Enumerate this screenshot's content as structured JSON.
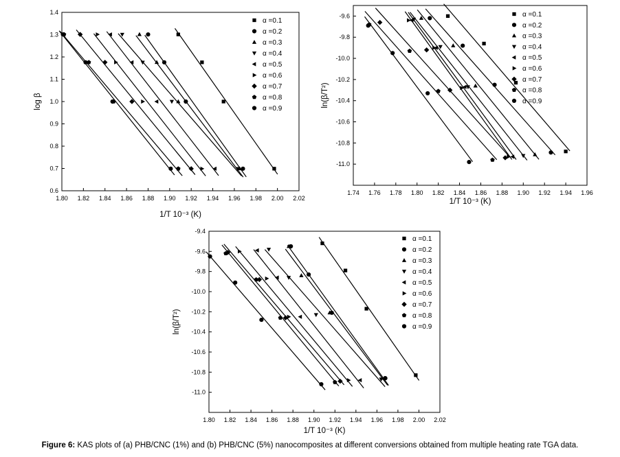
{
  "caption": {
    "label": "Figure 6:",
    "text": " KAS plots of (a) PHB/CNC (1%) and (b) PHB/CNC (5%) nanocomposites at different conversions obtained from multiple heating rate TGA data."
  },
  "chart_data": [
    {
      "type": "scatter",
      "xlabel": "1/T 10⁻³ (K)",
      "ylabel": "log β",
      "xlim": [
        1.8,
        2.02
      ],
      "ylim": [
        0.6,
        1.4
      ],
      "xticks": [
        1.8,
        1.82,
        1.84,
        1.86,
        1.88,
        1.9,
        1.92,
        1.94,
        1.96,
        1.98,
        2.0,
        2.02
      ],
      "yticks": [
        0.6,
        0.7,
        0.8,
        0.9,
        1.0,
        1.1,
        1.2,
        1.3,
        1.4
      ],
      "xtick_labels": [
        "1.80",
        "1.82",
        "1.84",
        "1.86",
        "1.88",
        "1.90",
        "1.92",
        "1.94",
        "1.96",
        "1.98",
        "2.00",
        "2.02"
      ],
      "ytick_labels": [
        "0.6",
        "0.7",
        "0.8",
        "0.9",
        "1.0",
        "1.1",
        "1.2",
        "1.3",
        "1.4"
      ],
      "legend_position": "top-right",
      "series": [
        {
          "name": "α =0.1",
          "marker": "square",
          "x": [
            1.908,
            1.93,
            1.95,
            1.997
          ],
          "y": [
            1.301,
            1.176,
            1.0,
            0.699
          ]
        },
        {
          "name": "α =0.2",
          "marker": "circle",
          "x": [
            1.88,
            1.895,
            1.915,
            1.968
          ],
          "y": [
            1.301,
            1.176,
            1.0,
            0.699
          ]
        },
        {
          "name": "α =0.3",
          "marker": "triangle-up",
          "x": [
            1.872,
            1.888,
            1.908,
            1.965
          ],
          "y": [
            1.301,
            1.176,
            1.0,
            0.699
          ]
        },
        {
          "name": "α =0.4",
          "marker": "triangle-down",
          "x": [
            1.856,
            1.875,
            1.902,
            1.963
          ],
          "y": [
            1.301,
            1.176,
            1.0,
            0.699
          ]
        },
        {
          "name": "α =0.5",
          "marker": "triangle-left",
          "x": [
            1.845,
            1.865,
            1.888,
            1.942
          ],
          "y": [
            1.301,
            1.176,
            1.0,
            0.699
          ]
        },
        {
          "name": "α =0.6",
          "marker": "triangle-right",
          "x": [
            1.833,
            1.85,
            1.875,
            1.93
          ],
          "y": [
            1.301,
            1.176,
            1.0,
            0.699
          ]
        },
        {
          "name": "α =0.7",
          "marker": "diamond",
          "x": [
            1.817,
            1.84,
            1.865,
            1.92
          ],
          "y": [
            1.301,
            1.176,
            1.0,
            0.699
          ]
        },
        {
          "name": "α =0.8",
          "marker": "pentagon",
          "x": [
            1.802,
            1.825,
            1.848,
            1.908
          ],
          "y": [
            1.301,
            1.176,
            1.0,
            0.699
          ]
        },
        {
          "name": "α =0.9",
          "marker": "circle",
          "x": [
            1.801,
            1.822,
            1.847,
            1.901
          ],
          "y": [
            1.301,
            1.176,
            1.0,
            0.699
          ]
        }
      ]
    },
    {
      "type": "scatter",
      "xlabel": "1/T 10⁻³ (K)",
      "ylabel": "ln(β/T²)",
      "xlim": [
        1.74,
        1.96
      ],
      "ylim": [
        -11.2,
        -9.5
      ],
      "xticks": [
        1.74,
        1.76,
        1.78,
        1.8,
        1.82,
        1.84,
        1.86,
        1.88,
        1.9,
        1.92,
        1.94,
        1.96
      ],
      "yticks": [
        -11.0,
        -10.8,
        -10.6,
        -10.4,
        -10.2,
        -10.0,
        -9.8,
        -9.6
      ],
      "xtick_labels": [
        "1.74",
        "1.76",
        "1.78",
        "1.80",
        "1.82",
        "1.84",
        "1.86",
        "1.88",
        "1.90",
        "1.92",
        "1.94",
        "1.96"
      ],
      "ytick_labels": [
        "-11.0",
        "-10.8",
        "-10.6",
        "-10.4",
        "-10.2",
        "-10.0",
        "-9.8",
        "-9.6"
      ],
      "legend_position": "top-right",
      "series": [
        {
          "name": "α =0.1",
          "marker": "square",
          "x": [
            1.829,
            1.863,
            1.893,
            1.94
          ],
          "y": [
            -9.6,
            -9.86,
            -10.23,
            -10.88
          ]
        },
        {
          "name": "α =0.2",
          "marker": "circle",
          "x": [
            1.812,
            1.843,
            1.873,
            1.926
          ],
          "y": [
            -9.62,
            -9.88,
            -10.25,
            -10.89
          ]
        },
        {
          "name": "α =0.3",
          "marker": "triangle-up",
          "x": [
            1.804,
            1.834,
            1.855,
            1.911
          ],
          "y": [
            -9.62,
            -9.88,
            -10.26,
            -10.91
          ]
        },
        {
          "name": "α =0.4",
          "marker": "triangle-down",
          "x": [
            1.797,
            1.822,
            1.848,
            1.9
          ],
          "y": [
            -9.63,
            -9.89,
            -10.27,
            -10.92
          ]
        },
        {
          "name": "α =0.5",
          "marker": "triangle-left",
          "x": [
            1.795,
            1.818,
            1.845,
            1.89
          ],
          "y": [
            -9.64,
            -9.9,
            -10.27,
            -10.93
          ]
        },
        {
          "name": "α =0.6",
          "marker": "triangle-right",
          "x": [
            1.792,
            1.816,
            1.842,
            1.886
          ],
          "y": [
            -9.64,
            -9.9,
            -10.28,
            -10.93
          ]
        },
        {
          "name": "α =0.7",
          "marker": "diamond",
          "x": [
            1.765,
            1.809,
            1.831,
            1.883
          ],
          "y": [
            -9.66,
            -9.92,
            -10.3,
            -10.94
          ]
        },
        {
          "name": "α =0.8",
          "marker": "pentagon",
          "x": [
            1.755,
            1.793,
            1.82,
            1.871
          ],
          "y": [
            -9.68,
            -9.93,
            -10.31,
            -10.96
          ]
        },
        {
          "name": "α =0.9",
          "marker": "circle",
          "x": [
            1.754,
            1.777,
            1.81,
            1.849
          ],
          "y": [
            -9.69,
            -9.95,
            -10.33,
            -10.98
          ]
        }
      ]
    },
    {
      "type": "scatter",
      "xlabel": "1/T 10⁻³ (K)",
      "ylabel": "ln(β/T²)",
      "xlim": [
        1.8,
        2.02
      ],
      "ylim": [
        -11.2,
        -9.4
      ],
      "xticks": [
        1.8,
        1.82,
        1.84,
        1.86,
        1.88,
        1.9,
        1.92,
        1.94,
        1.96,
        1.98,
        2.0,
        2.02
      ],
      "yticks": [
        -11.0,
        -10.8,
        -10.6,
        -10.4,
        -10.2,
        -10.0,
        -9.8,
        -9.6,
        -9.4
      ],
      "xtick_labels": [
        "1.80",
        "1.82",
        "1.84",
        "1.86",
        "1.88",
        "1.90",
        "1.92",
        "1.94",
        "1.96",
        "1.98",
        "2.00",
        "2.02"
      ],
      "ytick_labels": [
        "-11.0",
        "-10.8",
        "-10.6",
        "-10.4",
        "-10.2",
        "-10.0",
        "-9.8",
        "-9.6",
        "-9.4"
      ],
      "legend_position": "top-right",
      "series": [
        {
          "name": "α =0.1",
          "marker": "square",
          "x": [
            1.908,
            1.93,
            1.95,
            1.997
          ],
          "y": [
            -9.52,
            -9.79,
            -10.17,
            -10.83
          ]
        },
        {
          "name": "α =0.2",
          "marker": "circle",
          "x": [
            1.878,
            1.895,
            1.917,
            1.968
          ],
          "y": [
            -9.55,
            -9.83,
            -10.21,
            -10.86
          ]
        },
        {
          "name": "α =0.3",
          "marker": "triangle-up",
          "x": [
            1.876,
            1.888,
            1.915,
            1.967
          ],
          "y": [
            -9.55,
            -9.84,
            -10.21,
            -10.86
          ]
        },
        {
          "name": "α =0.4",
          "marker": "triangle-down",
          "x": [
            1.857,
            1.876,
            1.902,
            1.964
          ],
          "y": [
            -9.58,
            -9.86,
            -10.23,
            -10.87
          ]
        },
        {
          "name": "α =0.5",
          "marker": "triangle-left",
          "x": [
            1.846,
            1.865,
            1.887,
            1.944
          ],
          "y": [
            -9.59,
            -9.86,
            -10.25,
            -10.88
          ]
        },
        {
          "name": "α =0.6",
          "marker": "triangle-right",
          "x": [
            1.829,
            1.855,
            1.876,
            1.933
          ],
          "y": [
            -9.6,
            -9.87,
            -10.25,
            -10.88
          ]
        },
        {
          "name": "α =0.7",
          "marker": "diamond",
          "x": [
            1.818,
            1.848,
            1.873,
            1.925
          ],
          "y": [
            -9.61,
            -9.88,
            -10.26,
            -10.89
          ]
        },
        {
          "name": "α =0.8",
          "marker": "pentagon",
          "x": [
            1.816,
            1.845,
            1.868,
            1.92
          ],
          "y": [
            -9.62,
            -9.88,
            -10.26,
            -10.9
          ]
        },
        {
          "name": "α =0.9",
          "marker": "circle",
          "x": [
            1.801,
            1.825,
            1.85,
            1.907
          ],
          "y": [
            -9.65,
            -9.91,
            -10.28,
            -10.92
          ]
        }
      ]
    }
  ]
}
